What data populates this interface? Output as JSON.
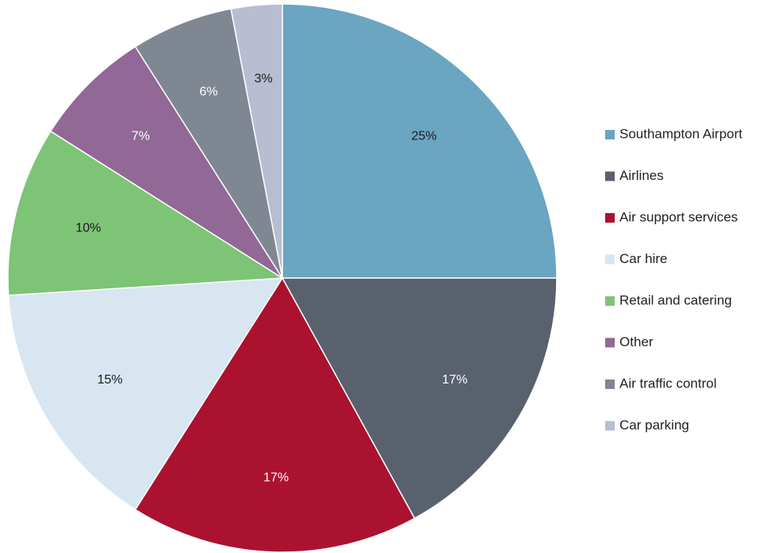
{
  "chart_data": {
    "type": "pie",
    "title": "",
    "legend_position": "right",
    "series": [
      {
        "name": "Southampton Airport",
        "value": 25,
        "label": "25%",
        "color": "#6aa5c1",
        "label_color": "#1a1a1a"
      },
      {
        "name": "Airlines",
        "value": 17,
        "label": "17%",
        "color": "#58616d",
        "label_color": "#ffffff"
      },
      {
        "name": "Air support services",
        "value": 17,
        "label": "17%",
        "color": "#ab1230",
        "label_color": "#ffffff"
      },
      {
        "name": "Car hire",
        "value": 15,
        "label": "15%",
        "color": "#d7e6f1",
        "label_color": "#1a1a1a"
      },
      {
        "name": "Retail and catering",
        "value": 10,
        "label": "10%",
        "color": "#7dc476",
        "label_color": "#1a1a1a"
      },
      {
        "name": "Other",
        "value": 7,
        "label": "7%",
        "color": "#916896",
        "label_color": "#ffffff"
      },
      {
        "name": "Air traffic control",
        "value": 6,
        "label": "6%",
        "color": "#7f8793",
        "label_color": "#ffffff"
      },
      {
        "name": "Car parking",
        "value": 3,
        "label": "3%",
        "color": "#b8bdd2",
        "label_color": "#1a1a1a"
      }
    ]
  }
}
